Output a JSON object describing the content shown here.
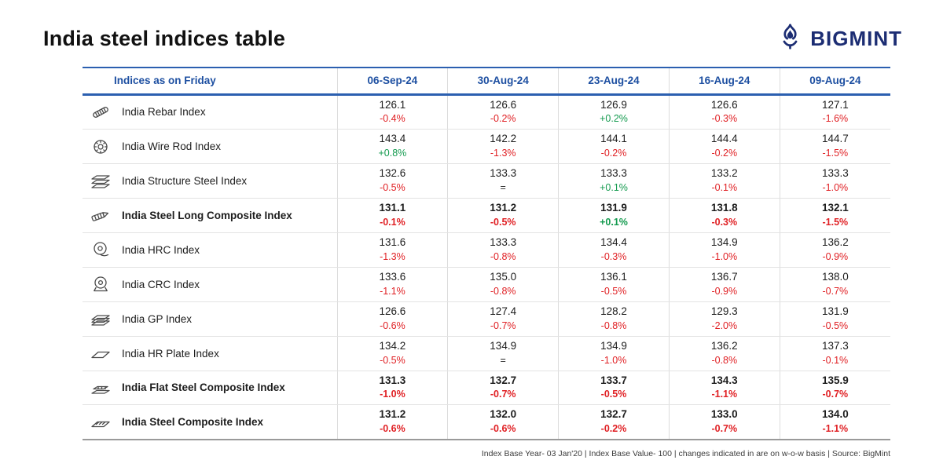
{
  "page": {
    "brand": "BIGMINT"
  },
  "colors": {
    "header_blue": "#1d4fa1",
    "line_blue": "#2b5fb0",
    "negative_red": "#e02024",
    "positive_green": "#139a4e",
    "equal_dark": "#2b2b2b",
    "brand_navy": "#1c2d73"
  },
  "chart_data": {
    "type": "table",
    "title": "India steel indices table",
    "columns": [
      "Indices as on Friday",
      "06-Sep-24",
      "30-Aug-24",
      "23-Aug-24",
      "16-Aug-24",
      "09-Aug-24"
    ],
    "rows": [
      {
        "index": "India Rebar Index",
        "icon": "rebar-icon",
        "bold": false,
        "values": [
          "126.1",
          "126.6",
          "126.9",
          "126.6",
          "127.1"
        ],
        "changes": [
          "-0.4%",
          "-0.2%",
          "+0.2%",
          "-0.3%",
          "-1.6%"
        ]
      },
      {
        "index": "India Wire Rod Index",
        "icon": "wire-rod-icon",
        "bold": false,
        "values": [
          "143.4",
          "142.2",
          "144.1",
          "144.4",
          "144.7"
        ],
        "changes": [
          "+0.8%",
          "-1.3%",
          "-0.2%",
          "-0.2%",
          "-1.5%"
        ]
      },
      {
        "index": "India Structure Steel Index",
        "icon": "structure-steel-icon",
        "bold": false,
        "values": [
          "132.6",
          "133.3",
          "133.3",
          "133.2",
          "133.3"
        ],
        "changes": [
          "-0.5%",
          "=",
          "+0.1%",
          "-0.1%",
          "-1.0%"
        ]
      },
      {
        "index": "India Steel Long Composite Index",
        "icon": "long-composite-icon",
        "bold": true,
        "values": [
          "131.1",
          "131.2",
          "131.9",
          "131.8",
          "132.1"
        ],
        "changes": [
          "-0.1%",
          "-0.5%",
          "+0.1%",
          "-0.3%",
          "-1.5%"
        ]
      },
      {
        "index": "India HRC Index",
        "icon": "hrc-icon",
        "bold": false,
        "values": [
          "131.6",
          "133.3",
          "134.4",
          "134.9",
          "136.2"
        ],
        "changes": [
          "-1.3%",
          "-0.8%",
          "-0.3%",
          "-1.0%",
          "-0.9%"
        ]
      },
      {
        "index": "India CRC Index",
        "icon": "crc-icon",
        "bold": false,
        "values": [
          "133.6",
          "135.0",
          "136.1",
          "136.7",
          "138.0"
        ],
        "changes": [
          "-1.1%",
          "-0.8%",
          "-0.5%",
          "-0.9%",
          "-0.7%"
        ]
      },
      {
        "index": "India GP Index",
        "icon": "gp-icon",
        "bold": false,
        "values": [
          "126.6",
          "127.4",
          "128.2",
          "129.3",
          "131.9"
        ],
        "changes": [
          "-0.6%",
          "-0.7%",
          "-0.8%",
          "-2.0%",
          "-0.5%"
        ]
      },
      {
        "index": "India HR Plate Index",
        "icon": "hr-plate-icon",
        "bold": false,
        "values": [
          "134.2",
          "134.9",
          "134.9",
          "136.2",
          "137.3"
        ],
        "changes": [
          "-0.5%",
          "=",
          "-1.0%",
          "-0.8%",
          "-0.1%"
        ]
      },
      {
        "index": "India Flat Steel Composite Index",
        "icon": "flat-composite-icon",
        "bold": true,
        "values": [
          "131.3",
          "132.7",
          "133.7",
          "134.3",
          "135.9"
        ],
        "changes": [
          "-1.0%",
          "-0.7%",
          "-0.5%",
          "-1.1%",
          "-0.7%"
        ]
      },
      {
        "index": "India Steel Composite Index",
        "icon": "steel-composite-icon",
        "bold": true,
        "values": [
          "131.2",
          "132.0",
          "132.7",
          "133.0",
          "134.0"
        ],
        "changes": [
          "-0.6%",
          "-0.6%",
          "-0.2%",
          "-0.7%",
          "-1.1%"
        ]
      }
    ],
    "footnote": "Index Base Year- 03 Jan'20 | Index Base Value- 100 | changes indicated in are on w-o-w basis | Source: BigMint"
  }
}
